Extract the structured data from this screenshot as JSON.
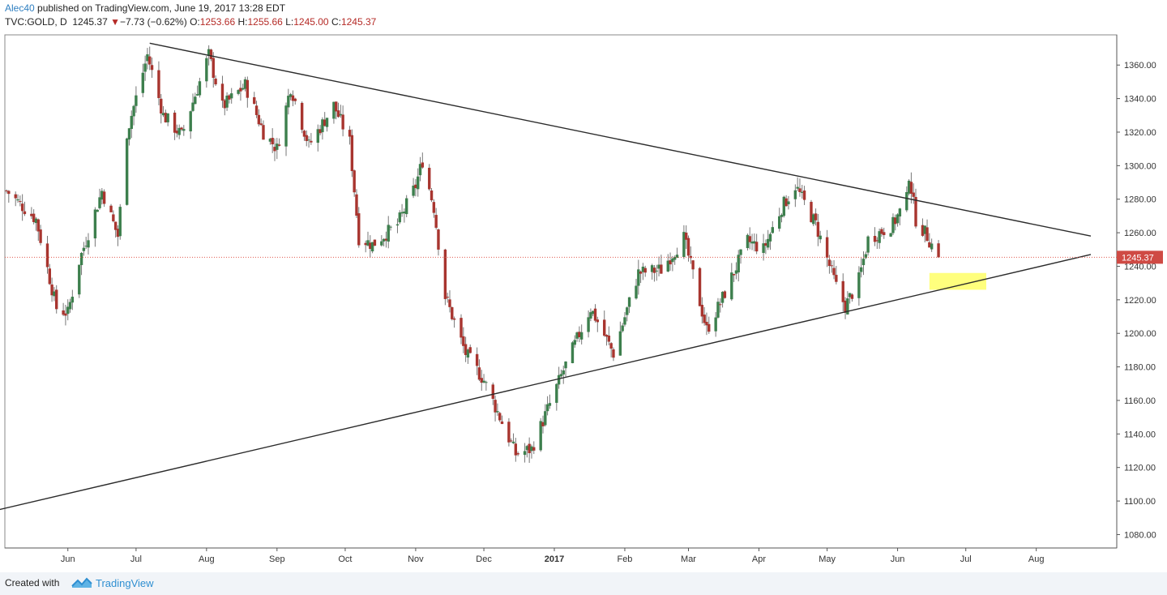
{
  "header": {
    "author": "Alec40",
    "published": " published on TradingView.com, June 19, 2017 13:28 EDT",
    "symbol": "TVC:GOLD, D",
    "last": "1245.37",
    "change_arrow": "▼",
    "change": "−7.73 (−0.62%)",
    "open_label": "O:",
    "open": "1253.66",
    "high_label": "H:",
    "high": "1255.66",
    "low_label": "L:",
    "low": "1245.00",
    "close_label": "C:",
    "close": "1245.37"
  },
  "footer": {
    "created": "Created with",
    "brand": "TradingView"
  },
  "colors": {
    "up": "#3d7f4d",
    "down": "#a8352f",
    "wick": "#777777",
    "price_line": "#e0594f",
    "price_badge": "#cf4a44",
    "trendline": "#2b2b2b",
    "highlight": "#ffff66",
    "axis": "#555555"
  },
  "chart_data": {
    "type": "candlestick",
    "title": "TVC:GOLD, D",
    "x_axis_labels": [
      "Jun",
      "Jul",
      "Aug",
      "Sep",
      "Oct",
      "Nov",
      "Dec",
      "2017",
      "Feb",
      "Mar",
      "Apr",
      "May",
      "Jun",
      "Jul",
      "Aug"
    ],
    "y_axis_labels": [
      "1080.00",
      "1100.00",
      "1120.00",
      "1140.00",
      "1160.00",
      "1180.00",
      "1200.00",
      "1220.00",
      "1240.00",
      "1260.00",
      "1280.00",
      "1300.00",
      "1320.00",
      "1340.00",
      "1360.00"
    ],
    "ylim": [
      1072,
      1378
    ],
    "last_price": 1245.37,
    "last_price_label": "1245.37",
    "anchors": [
      {
        "date": "2016-05-05",
        "close": 1285
      },
      {
        "date": "2016-05-18",
        "close": 1268
      },
      {
        "date": "2016-05-27",
        "close": 1215
      },
      {
        "date": "2016-06-01",
        "close": 1212
      },
      {
        "date": "2016-06-06",
        "close": 1243
      },
      {
        "date": "2016-06-16",
        "close": 1285
      },
      {
        "date": "2016-06-23",
        "close": 1258
      },
      {
        "date": "2016-06-27",
        "close": 1320
      },
      {
        "date": "2016-07-06",
        "close": 1366
      },
      {
        "date": "2016-07-13",
        "close": 1330
      },
      {
        "date": "2016-07-21",
        "close": 1318
      },
      {
        "date": "2016-08-02",
        "close": 1366
      },
      {
        "date": "2016-08-08",
        "close": 1335
      },
      {
        "date": "2016-08-18",
        "close": 1348
      },
      {
        "date": "2016-08-26",
        "close": 1320
      },
      {
        "date": "2016-09-01",
        "close": 1310
      },
      {
        "date": "2016-09-07",
        "close": 1347
      },
      {
        "date": "2016-09-15",
        "close": 1312
      },
      {
        "date": "2016-09-26",
        "close": 1336
      },
      {
        "date": "2016-10-03",
        "close": 1314
      },
      {
        "date": "2016-10-07",
        "close": 1257
      },
      {
        "date": "2016-10-13",
        "close": 1253
      },
      {
        "date": "2016-10-24",
        "close": 1265
      },
      {
        "date": "2016-11-01",
        "close": 1288
      },
      {
        "date": "2016-11-04",
        "close": 1303
      },
      {
        "date": "2016-11-09",
        "close": 1275
      },
      {
        "date": "2016-11-14",
        "close": 1222
      },
      {
        "date": "2016-11-23",
        "close": 1188
      },
      {
        "date": "2016-12-01",
        "close": 1172
      },
      {
        "date": "2016-12-15",
        "close": 1128
      },
      {
        "date": "2016-12-22",
        "close": 1131
      },
      {
        "date": "2017-01-05",
        "close": 1178
      },
      {
        "date": "2017-01-17",
        "close": 1215
      },
      {
        "date": "2017-01-27",
        "close": 1188
      },
      {
        "date": "2017-02-07",
        "close": 1236
      },
      {
        "date": "2017-02-17",
        "close": 1238
      },
      {
        "date": "2017-02-27",
        "close": 1257
      },
      {
        "date": "2017-03-09",
        "close": 1202
      },
      {
        "date": "2017-03-15",
        "close": 1218
      },
      {
        "date": "2017-03-27",
        "close": 1255
      },
      {
        "date": "2017-04-03",
        "close": 1250
      },
      {
        "date": "2017-04-11",
        "close": 1275
      },
      {
        "date": "2017-04-17",
        "close": 1288
      },
      {
        "date": "2017-04-26",
        "close": 1265
      },
      {
        "date": "2017-05-05",
        "close": 1228
      },
      {
        "date": "2017-05-09",
        "close": 1216
      },
      {
        "date": "2017-05-15",
        "close": 1232
      },
      {
        "date": "2017-05-19",
        "close": 1256
      },
      {
        "date": "2017-05-30",
        "close": 1265
      },
      {
        "date": "2017-06-05",
        "close": 1280
      },
      {
        "date": "2017-06-06",
        "close": 1295
      },
      {
        "date": "2017-06-09",
        "close": 1268
      },
      {
        "date": "2017-06-14",
        "close": 1258
      },
      {
        "date": "2017-06-19",
        "close": 1245
      }
    ],
    "trendlines": [
      {
        "name": "resistance",
        "from": {
          "date": "2016-07-07",
          "price": 1373
        },
        "to": {
          "date": "2017-08-25",
          "price": 1258
        }
      },
      {
        "name": "support",
        "from": {
          "date": "2016-04-29",
          "price": 1094
        },
        "to": {
          "date": "2017-08-25",
          "price": 1247
        }
      }
    ],
    "highlight_zone": {
      "from": "2017-06-15",
      "to": "2017-07-10",
      "low": 1226,
      "high": 1236
    },
    "grid": false
  }
}
